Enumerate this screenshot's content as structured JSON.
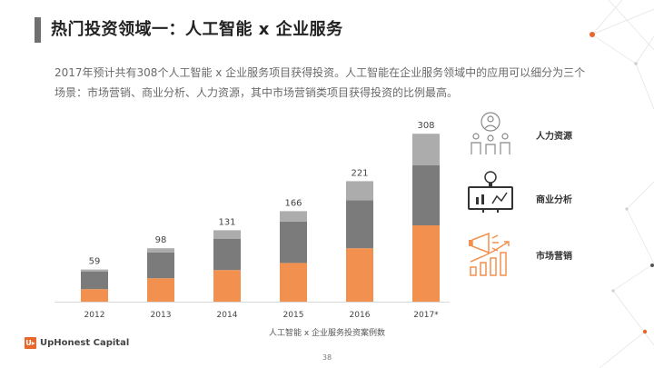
{
  "header": {
    "title": "热门投资领域一：人工智能 x 企业服务"
  },
  "description": {
    "line1": "2017年预计共有308个人工智能 x 企业服务项目获得投资。人工智能在企业服务领域中的应用可以细分为三个",
    "line2": "场景：市场营销、商业分析、人力资源，其中市场营销类项目获得投资的比例最高。"
  },
  "legend": {
    "hr": "人力资源",
    "analytics": "商业分析",
    "marketing": "市场营销"
  },
  "chart_data": {
    "type": "bar",
    "stacked": true,
    "categories": [
      "2012",
      "2013",
      "2014",
      "2015",
      "2016",
      "2017*"
    ],
    "totals": [
      59,
      98,
      131,
      166,
      221,
      308
    ],
    "series": [
      {
        "name": "市场营销",
        "color": "#f2914f",
        "values": [
          23,
          43,
          58,
          71,
          98,
          140
        ]
      },
      {
        "name": "商业分析",
        "color": "#7b7b7b",
        "values": [
          32,
          47,
          57,
          76,
          88,
          110
        ]
      },
      {
        "name": "人力资源",
        "color": "#acacac",
        "values": [
          4,
          8,
          16,
          19,
          35,
          58
        ]
      }
    ],
    "xlabel": "人工智能 x 企业服务投资案例数",
    "ylim": [
      0,
      330
    ]
  },
  "footer": {
    "logo_mark": "U▸",
    "logo_text": "UpHonest Capital",
    "page_number": "38"
  },
  "colors": {
    "accent_orange": "#e8672a",
    "marketing": "#f2914f",
    "dark_gray": "#7b7b7b",
    "light_gray": "#acacac"
  }
}
